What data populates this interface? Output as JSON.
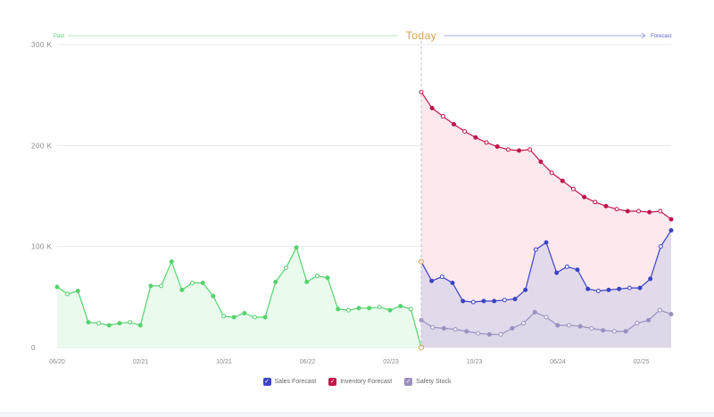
{
  "header": {
    "past_label": "Past",
    "today_label": "Today",
    "forecast_label": "Forecast"
  },
  "colors": {
    "past": "#55d36e",
    "past_fill": "#e6f9ea",
    "sales": "#3b44c4",
    "inventory": "#c2164a",
    "inventory_fill": "#fde4ea",
    "safety": "#9b8ec0",
    "safety_fill": "#ddd6ea",
    "today": "#d4a24c",
    "grid": "#e8e8ee"
  },
  "legend": [
    {
      "label": "Sales Forecast",
      "color": "#3b44c4"
    },
    {
      "label": "Inventory Forecast",
      "color": "#c2164a"
    },
    {
      "label": "Safety Stock",
      "color": "#9b8ec0"
    }
  ],
  "chart_data": {
    "type": "area",
    "y_ticks": [
      "0",
      "100 K",
      "200 K",
      "300 K"
    ],
    "ylim": [
      0,
      300000
    ],
    "x_ticks": [
      "06/20",
      "02/21",
      "10/21",
      "06/22",
      "02/23",
      "10/23",
      "06/24",
      "02/25"
    ],
    "grid": true,
    "legend_position": "bottom",
    "series": [
      {
        "name": "Past",
        "values": [
          60000,
          53000,
          56000,
          25000,
          24000,
          22000,
          24000,
          25000,
          22000,
          61000,
          61000,
          85000,
          57000,
          64000,
          64000,
          51000,
          31000,
          30000,
          34000,
          30000,
          30000,
          65000,
          79000,
          99000,
          65000,
          71000,
          69000,
          38000,
          37000,
          39000,
          39000,
          40000,
          37000,
          41000,
          38000,
          0
        ]
      },
      {
        "name": "Sales Forecast",
        "values": [
          85000,
          66000,
          70000,
          64000,
          46000,
          45000,
          46000,
          46000,
          47000,
          48000,
          57000,
          97000,
          104000,
          74000,
          80000,
          77000,
          58000,
          56000,
          57000,
          58000,
          59000,
          59000,
          68000,
          100000,
          116000
        ]
      },
      {
        "name": "Inventory Forecast",
        "values": [
          253000,
          237000,
          229000,
          221000,
          214000,
          208000,
          203000,
          199000,
          196000,
          195000,
          196000,
          184000,
          173000,
          165000,
          157000,
          149000,
          144000,
          140000,
          137000,
          135000,
          135000,
          134000,
          135000,
          127000
        ]
      },
      {
        "name": "Safety Stock",
        "values": [
          27000,
          20000,
          19000,
          18000,
          16000,
          14000,
          13000,
          13000,
          19000,
          24000,
          35000,
          30000,
          22000,
          22000,
          21000,
          19000,
          17000,
          16000,
          16000,
          24000,
          27000,
          37000,
          33000
        ]
      }
    ]
  }
}
